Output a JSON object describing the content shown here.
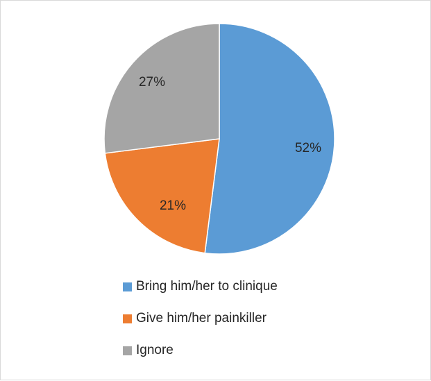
{
  "chart_data": {
    "type": "pie",
    "title": "",
    "categories": [
      "Bring him/her to clinique",
      "Give him/her painkiller",
      "Ignore"
    ],
    "values": [
      52,
      21,
      27
    ],
    "value_labels": [
      "52%",
      "21%",
      "27%"
    ],
    "colors": [
      "#5b9bd5",
      "#ed7d31",
      "#a5a5a5"
    ],
    "start_angle_deg": 0,
    "direction": "clockwise",
    "legend_position": "bottom"
  }
}
